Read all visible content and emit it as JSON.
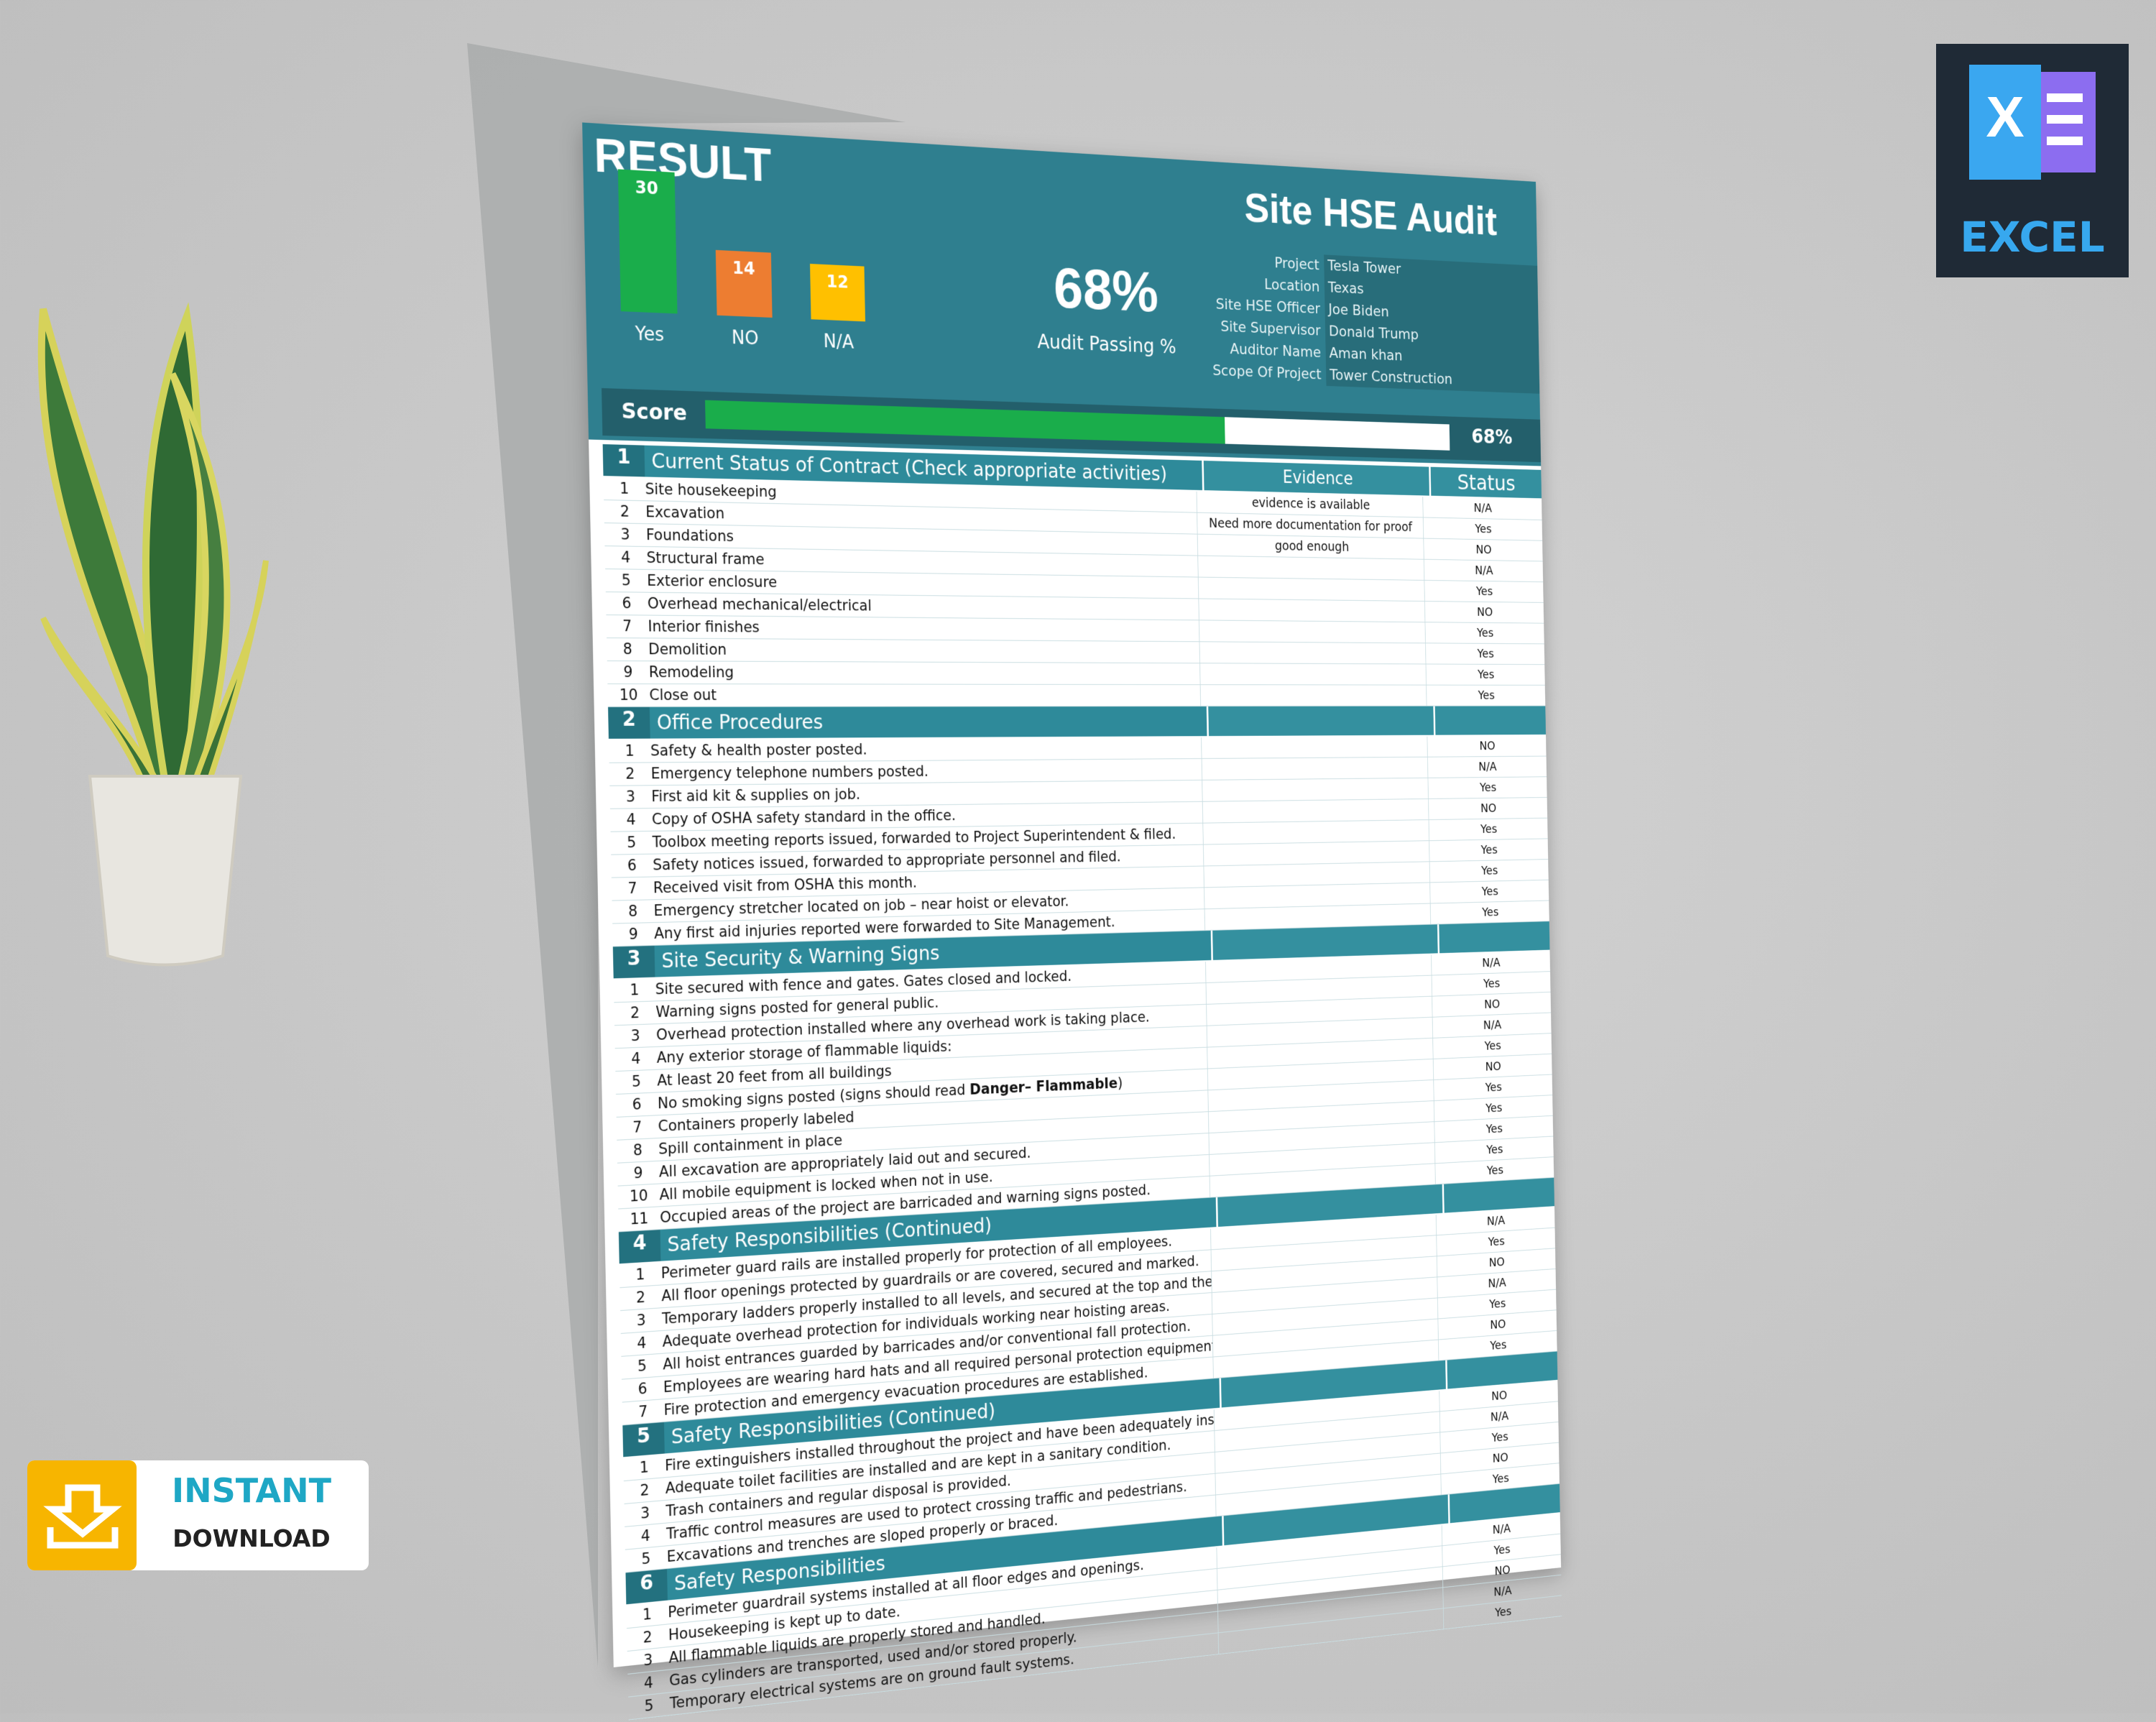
{
  "header": {
    "result_title": "RESULT",
    "title": "Site HSE Audit"
  },
  "summary": {
    "bars": [
      {
        "label": "Yes",
        "value": 30,
        "color": "#1aad4b"
      },
      {
        "label": "NO",
        "value": 14,
        "color": "#ed7d31"
      },
      {
        "label": "N/A",
        "value": 12,
        "color": "#ffc000"
      }
    ],
    "score": {
      "value": 68,
      "label": "68%"
    },
    "score_caption": "Audit Passing %",
    "score_label": "Score"
  },
  "project_info": [
    {
      "label": "Project",
      "value": "Tesla Tower"
    },
    {
      "label": "Location",
      "value": "Texas"
    },
    {
      "label": "Site HSE Officer",
      "value": "Joe Biden"
    },
    {
      "label": "Site Supervisor",
      "value": "Donald Trump"
    },
    {
      "label": "Auditor Name",
      "value": "Aman khan"
    },
    {
      "label": "Scope Of Project",
      "value": "Tower Construction"
    }
  ],
  "table": {
    "columns": [
      "Evidence",
      "Status"
    ],
    "sections": [
      {
        "no": 1,
        "title": "Current Status of Contract (Check appropriate activities)",
        "items": [
          {
            "no": 1,
            "text": "Site housekeeping",
            "evidence": "evidence is available",
            "status": "N/A"
          },
          {
            "no": 2,
            "text": "Excavation",
            "evidence": "Need more documentation for proof",
            "status": "Yes"
          },
          {
            "no": 3,
            "text": "Foundations",
            "evidence": "good enough",
            "status": "NO"
          },
          {
            "no": 4,
            "text": "Structural frame",
            "status": "N/A"
          },
          {
            "no": 5,
            "text": "Exterior enclosure",
            "status": "Yes"
          },
          {
            "no": 6,
            "text": "Overhead mechanical/electrical",
            "status": "NO"
          },
          {
            "no": 7,
            "text": "Interior finishes",
            "status": "Yes"
          },
          {
            "no": 8,
            "text": "Demolition",
            "status": "Yes"
          },
          {
            "no": 9,
            "text": "Remodeling",
            "status": "Yes"
          },
          {
            "no": 10,
            "text": "Close out",
            "status": "Yes"
          }
        ]
      },
      {
        "no": 2,
        "title": "Office Procedures",
        "items": [
          {
            "no": 1,
            "text": "Safety & health poster posted.",
            "status": "NO"
          },
          {
            "no": 2,
            "text": "Emergency telephone numbers posted.",
            "status": "N/A"
          },
          {
            "no": 3,
            "text": "First aid kit & supplies on job.",
            "status": "Yes"
          },
          {
            "no": 4,
            "text": "Copy of OSHA safety standard in the office.",
            "status": "NO"
          },
          {
            "no": 5,
            "text": "Toolbox meeting reports issued, forwarded to Project Superintendent & filed.",
            "status": "Yes"
          },
          {
            "no": 6,
            "text": "Safety notices issued, forwarded to appropriate personnel and filed.",
            "status": "Yes"
          },
          {
            "no": 7,
            "text": "Received visit from OSHA this month.",
            "status": "Yes"
          },
          {
            "no": 8,
            "text": "Emergency stretcher located on job – near hoist or elevator.",
            "status": "Yes"
          },
          {
            "no": 9,
            "text": "Any first aid injuries reported were forwarded to Site Management.",
            "status": "Yes"
          }
        ]
      },
      {
        "no": 3,
        "title": "Site Security & Warning Signs",
        "items": [
          {
            "no": 1,
            "text": "Site secured with fence and gates.  Gates closed and locked.",
            "status": "N/A"
          },
          {
            "no": 2,
            "text": "Warning signs posted for general public.",
            "status": "Yes"
          },
          {
            "no": 3,
            "text": "Overhead protection installed where any overhead work is taking place.",
            "status": "NO"
          },
          {
            "no": 4,
            "text": "Any exterior storage of flammable liquids:",
            "status": "N/A"
          },
          {
            "no": 5,
            "text": "At least 20 feet from all buildings",
            "status": "Yes"
          },
          {
            "no": 6,
            "text": "No smoking signs posted (signs should read ",
            "bold": "Danger– Flammable",
            "after": ")",
            "status": "NO"
          },
          {
            "no": 7,
            "text": "Containers properly labeled",
            "status": "Yes"
          },
          {
            "no": 8,
            "text": "Spill containment in place",
            "status": "Yes"
          },
          {
            "no": 9,
            "text": "All excavation are appropriately laid out and secured.",
            "status": "Yes"
          },
          {
            "no": 10,
            "text": "All mobile equipment is locked when not in use.",
            "status": "Yes"
          },
          {
            "no": 11,
            "text": "Occupied areas of the project are barricaded and warning signs posted.",
            "status": "Yes"
          }
        ]
      },
      {
        "no": 4,
        "title": "Safety Responsibilities (Continued)",
        "items": [
          {
            "no": 1,
            "text": "Perimeter guard rails are installed properly for protection of all employees.",
            "status": "N/A"
          },
          {
            "no": 2,
            "text": "All floor openings protected by guardrails or are covered, secured and marked.",
            "status": "Yes"
          },
          {
            "no": 3,
            "text": "Temporary ladders properly installed to all levels, and secured at the top and the bottom.",
            "status": "NO"
          },
          {
            "no": 4,
            "text": "Adequate overhead protection for individuals working near hoisting areas.",
            "status": "N/A"
          },
          {
            "no": 5,
            "text": "All hoist entrances guarded by barricades and/or conventional fall protection.",
            "status": "Yes"
          },
          {
            "no": 6,
            "text": "Employees are wearing hard hats and all required personal protection equipment.",
            "status": "NO"
          },
          {
            "no": 7,
            "text": "Fire protection and emergency evacuation procedures are established.",
            "status": "Yes"
          }
        ]
      },
      {
        "no": 5,
        "title": "Safety Responsibilities (Continued)",
        "items": [
          {
            "no": 1,
            "text": "Fire extinguishers installed throughout the project and have been adequately inspected.",
            "status": "NO"
          },
          {
            "no": 2,
            "text": "Adequate toilet facilities are installed and are kept in a sanitary condition.",
            "status": "N/A"
          },
          {
            "no": 3,
            "text": "Trash containers and regular disposal is provided.",
            "status": "Yes"
          },
          {
            "no": 4,
            "text": "Traffic control measures are used to protect crossing traffic and pedestrians.",
            "status": "NO"
          },
          {
            "no": 5,
            "text": "Excavations and trenches are sloped properly or braced.",
            "status": "Yes"
          }
        ]
      },
      {
        "no": 6,
        "title": "Safety Responsibilities",
        "items": [
          {
            "no": 1,
            "text": "Perimeter guardrail systems installed at all floor edges and openings.",
            "status": "N/A"
          },
          {
            "no": 2,
            "text": "Housekeeping is kept up to date.",
            "status": "Yes"
          },
          {
            "no": 3,
            "text": "All flammable liquids are properly stored and handled.",
            "status": "NO"
          },
          {
            "no": 4,
            "text": "Gas cylinders are transported, used and/or stored properly.",
            "status": "N/A"
          },
          {
            "no": 5,
            "text": "Temporary electrical systems are on ground fault systems.",
            "status": "Yes"
          }
        ]
      }
    ]
  },
  "badges": {
    "excel_letter": "X",
    "excel": "EXCEL",
    "instant": "INSTANT",
    "download": "DOWNLOAD"
  }
}
